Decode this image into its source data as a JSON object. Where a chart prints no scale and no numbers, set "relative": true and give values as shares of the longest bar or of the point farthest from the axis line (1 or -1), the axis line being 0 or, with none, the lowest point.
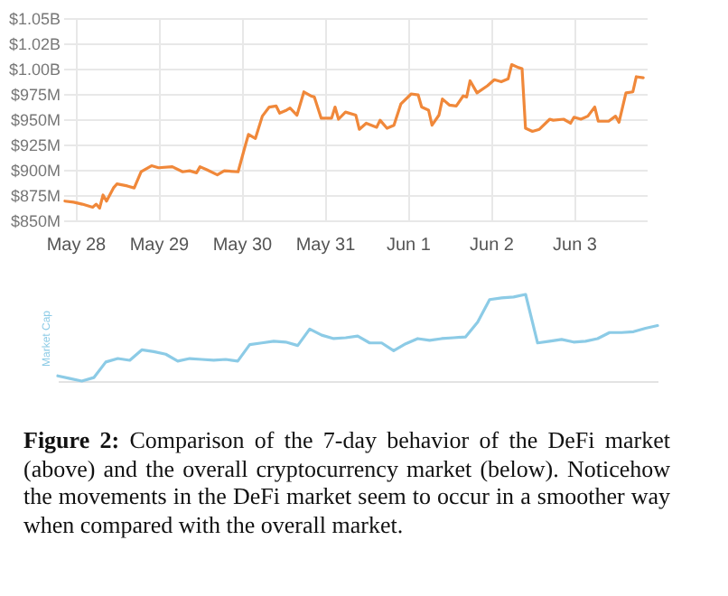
{
  "chart_data": [
    {
      "type": "line",
      "x": [
        "--05-27T21:00",
        "--05-27T23:30",
        "--05-28T02:00",
        "--05-28T05:00",
        "--05-28T06:00",
        "--05-28T07:00",
        "--05-28T08:00",
        "--05-28T09:00",
        "--05-28T11:00",
        "--05-28T12:00",
        "--05-28T15:00",
        "--05-28T17:00",
        "--05-28T19:00",
        "--05-28T22:00",
        "--05-29T00:00",
        "--05-29T04:00",
        "--05-29T07:00",
        "--05-29T09:00",
        "--05-29T11:00",
        "--05-29T12:00",
        "--05-29T14:00",
        "--05-29T17:00",
        "--05-29T19:00",
        "--05-29T23:00",
        "--05-30T01:00",
        "--05-30T02:00",
        "--05-30T04:00",
        "--05-30T06:00",
        "--05-30T08:00",
        "--05-30T10:00",
        "--05-30T11:00",
        "--05-30T13:00",
        "--05-30T14:00",
        "--05-30T16:00",
        "--05-30T18:00",
        "--05-30T20:00",
        "--05-30T21:00",
        "--05-30T23:00",
        "--05-31T02:00",
        "--05-31T03:00",
        "--05-31T04:00",
        "--05-31T06:00",
        "--05-31T09:00",
        "--05-31T10:00",
        "--05-31T12:00",
        "--05-31T15:00",
        "--05-31T16:00",
        "--05-31T18:00",
        "--05-31T20:00",
        "--05-31T22:00",
        "--06-01T01:00",
        "--06-01T03:00",
        "--06-01T04:00",
        "--06-01T06:00",
        "--06-01T07:00",
        "--06-01T09:00",
        "--06-01T10:00",
        "--06-01T12:00",
        "--06-01T14:00",
        "--06-01T16:00",
        "--06-01T17:00",
        "--06-01T18:00",
        "--06-01T20:00",
        "--06-01T23:00",
        "--06-02T01:00",
        "--06-02T03:00",
        "--06-02T05:00",
        "--06-02T06:00",
        "--06-02T08:00",
        "--06-02T09:00",
        "--06-02T10:00",
        "--06-02T12:00",
        "--06-02T14:00",
        "--06-02T17:00",
        "--06-02T18:00",
        "--06-02T21:00",
        "--06-02T23:00",
        "--06-03T00:00",
        "--06-03T02:00",
        "--06-03T04:00",
        "--06-03T06:00",
        "--06-03T07:00",
        "--06-03T10:00",
        "--06-03T12:00",
        "--06-03T13:00",
        "--06-03T15:00",
        "--06-03T17:00",
        "--06-03T18:00",
        "--06-03T20:00"
      ],
      "series": [
        {
          "color": "#f0883a",
          "values": [
            869000000,
            868000000,
            866000000,
            863000000,
            866000000,
            862000000,
            875000000,
            869000000,
            882000000,
            886000000,
            884000000,
            882000000,
            898000000,
            904000000,
            902000000,
            903000000,
            898000000,
            899000000,
            897000000,
            903000000,
            900000000,
            895000000,
            899000000,
            898000000,
            923000000,
            935000000,
            931000000,
            953000000,
            962000000,
            963000000,
            956000000,
            959000000,
            961000000,
            954000000,
            977000000,
            973000000,
            972000000,
            951000000,
            951000000,
            962000000,
            950000000,
            957000000,
            954000000,
            940000000,
            946000000,
            942000000,
            949000000,
            941000000,
            944000000,
            965000000,
            975000000,
            974000000,
            962000000,
            959000000,
            944000000,
            954000000,
            970000000,
            964000000,
            963000000,
            973000000,
            972000000,
            988000000,
            976000000,
            983000000,
            989000000,
            987000000,
            990000000,
            1004000000,
            1001000000,
            1000000000,
            941000000,
            938000000,
            940000000,
            950000000,
            949000000,
            950000000,
            946000000,
            952000000,
            950000000,
            953000000,
            962000000,
            948000000,
            948000000,
            953000000,
            947000000,
            976000000,
            977000000,
            992000000,
            991000000
          ]
        }
      ],
      "xlim": [
        "--05-27T20:30",
        "--06-03T21:00"
      ],
      "xticks": [
        {
          "value": "--05-28",
          "label": "May 28"
        },
        {
          "value": "--05-29",
          "label": "May 29"
        },
        {
          "value": "--05-30",
          "label": "May 30"
        },
        {
          "value": "--05-31",
          "label": "May 31"
        },
        {
          "value": "--06-01",
          "label": "Jun 1"
        },
        {
          "value": "--06-02",
          "label": "Jun 2"
        },
        {
          "value": "--06-03",
          "label": "Jun 3"
        }
      ],
      "ylim": [
        850000000,
        1050000000
      ],
      "yticks": [
        {
          "value": 850000000,
          "label": "$850M"
        },
        {
          "value": 875000000,
          "label": "$875M"
        },
        {
          "value": 900000000,
          "label": "$900M"
        },
        {
          "value": 925000000,
          "label": "$925M"
        },
        {
          "value": 950000000,
          "label": "$950M"
        },
        {
          "value": 975000000,
          "label": "$975M"
        },
        {
          "value": 1000000000,
          "label": "$1.00B"
        },
        {
          "value": 1025000000,
          "label": "$1.02B"
        },
        {
          "value": 1050000000,
          "label": "$1.05B"
        }
      ],
      "grid": true
    },
    {
      "type": "line",
      "relative": true,
      "ylabel": "Market Cap",
      "categories": [
        null,
        null,
        null,
        null,
        null,
        null,
        null,
        null,
        null,
        null,
        null,
        null,
        null,
        null,
        null,
        null,
        null,
        null,
        null,
        null,
        null,
        null,
        null,
        null,
        null,
        null,
        null,
        null,
        null,
        null,
        null,
        null,
        null,
        null,
        null,
        null,
        null,
        null,
        null,
        null,
        null,
        null,
        null,
        null,
        null,
        null,
        null,
        null,
        null,
        null,
        null
      ],
      "series": [
        {
          "color": "#8ccbe6",
          "values": [
            0.06,
            0.03,
            0,
            0.04,
            0.22,
            0.26,
            0.24,
            0.36,
            0.34,
            0.31,
            0.23,
            0.26,
            0.25,
            0.24,
            0.25,
            0.23,
            0.42,
            0.44,
            0.46,
            0.45,
            0.41,
            0.6,
            0.53,
            0.49,
            0.5,
            0.52,
            0.44,
            0.44,
            0.35,
            0.43,
            0.49,
            0.47,
            0.49,
            0.5,
            0.51,
            0.68,
            0.94,
            0.96,
            0.97,
            1,
            0.44,
            0.46,
            0.48,
            0.45,
            0.46,
            0.49,
            0.56,
            0.56,
            0.57,
            0.61,
            0.64
          ]
        }
      ],
      "annotations": [
        "Figure 2: Comparison of the 7-day behavior of the DeFi market (above) and the overall cryptocurrency market (below). Noticehow the movements in the DeFi market seem to occur in a smoother way when compared with the overall market."
      ]
    }
  ]
}
